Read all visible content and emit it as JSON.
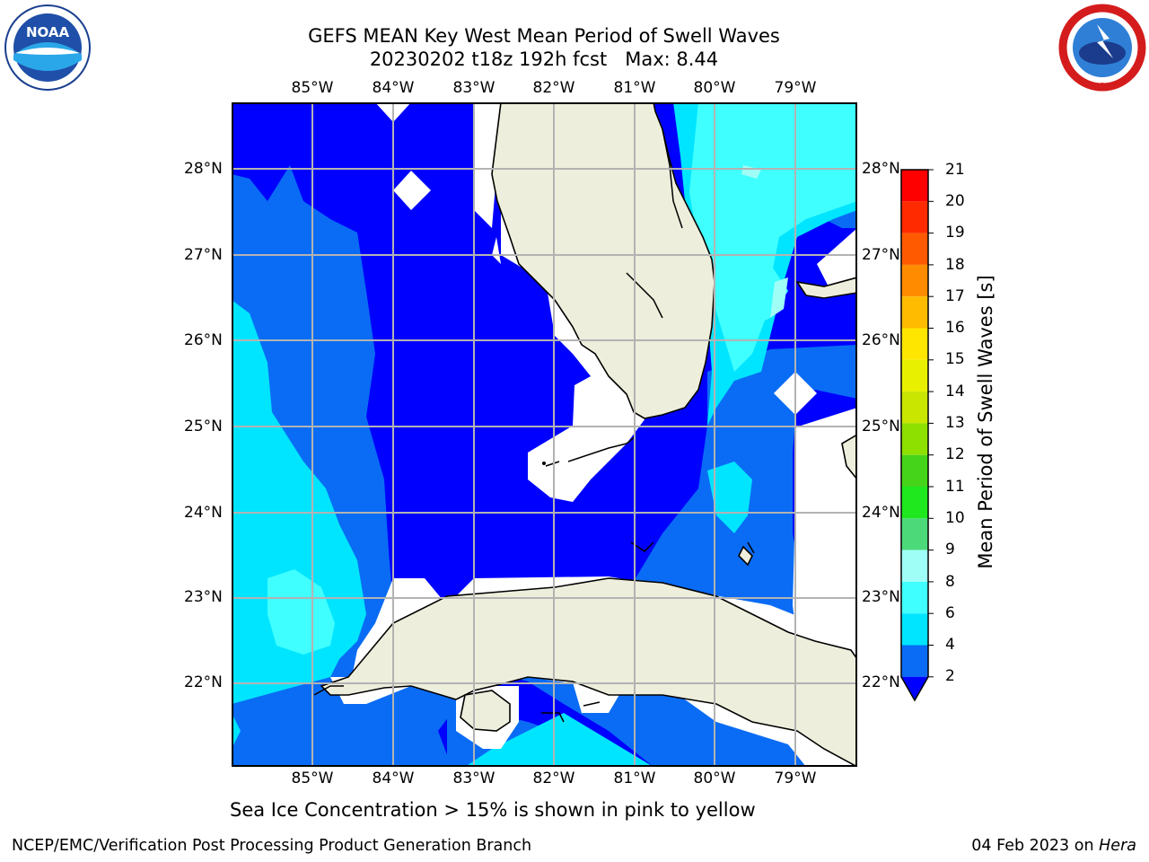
{
  "header": {
    "title_line1": "GEFS MEAN Key West Mean Period of Swell Waves",
    "title_line2": "20230202 t18z 192h fcst   Max: 8.44"
  },
  "logos": {
    "left": {
      "icon": "noaa-logo",
      "text": "NOAA"
    },
    "right": {
      "icon": "national-weather-service-logo",
      "text": "NATIONAL WEATHER SERVICE"
    }
  },
  "map": {
    "lon_labels": [
      "85°W",
      "84°W",
      "83°W",
      "82°W",
      "81°W",
      "80°W",
      "79°W"
    ],
    "lat_labels": [
      "28°N",
      "27°N",
      "26°N",
      "25°N",
      "24°N",
      "23°N",
      "22°N"
    ],
    "gridlines": true,
    "extent": {
      "lon": [
        -86.0,
        -78.25
      ],
      "lat": [
        21.0,
        28.75
      ]
    }
  },
  "colorbar": {
    "title": "Mean Period of Swell Waves [s]",
    "ticks": [
      "21",
      "20",
      "19",
      "18",
      "17",
      "16",
      "15",
      "14",
      "13",
      "12",
      "11",
      "10",
      "9",
      "8",
      "6",
      "4",
      "2"
    ],
    "colors": {
      "2-4": "#0a6cf5",
      "4-6": "#00e5ff",
      "6-8": "#40ffff",
      "8-9": "#9ffff6",
      "9-10": "#4cd97a",
      "10-11": "#1fe81f",
      "11-12": "#46d41a",
      "12-13": "#8ee000",
      "13-14": "#c8e600",
      "14-15": "#e8f000",
      "15-16": "#ffe600",
      "16-17": "#ffbb00",
      "17-18": "#ff8c00",
      "18-19": "#ff5a00",
      "19-20": "#ff2a00",
      "20-21": "#ff0000",
      "under": "#0000ff"
    }
  },
  "note": "Sea Ice Concentration > 15% is shown in pink to yellow",
  "footer": {
    "left": "NCEP/EMC/Verification Post Processing Product Generation Branch",
    "right_date": "04 Feb 2023 on",
    "right_host": "Hera"
  }
}
